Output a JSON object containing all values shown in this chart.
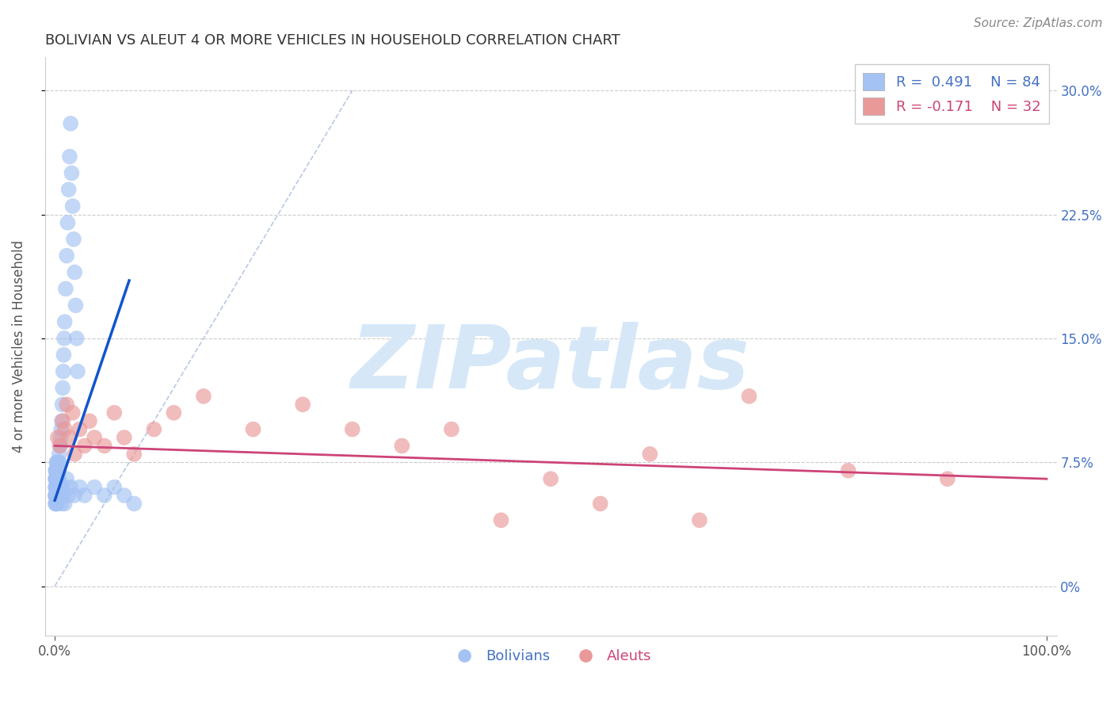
{
  "title": "BOLIVIAN VS ALEUT 4 OR MORE VEHICLES IN HOUSEHOLD CORRELATION CHART",
  "source_text": "Source: ZipAtlas.com",
  "xlabel": "",
  "ylabel": "4 or more Vehicles in Household",
  "xlim": [
    -1.0,
    101.0
  ],
  "ylim": [
    -3.0,
    32.0
  ],
  "xtick_vals": [
    0,
    100
  ],
  "xtick_labels": [
    "0.0%",
    "100.0%"
  ],
  "ytick_vals": [
    0,
    7.5,
    15.0,
    22.5,
    30.0
  ],
  "ytick_labels_right": [
    "0%",
    "7.5%",
    "15.0%",
    "22.5%",
    "30.0%"
  ],
  "blue_color": "#a4c2f4",
  "pink_color": "#ea9999",
  "blue_line_color": "#1155cc",
  "pink_line_color": "#cc4477",
  "grid_color": "#cccccc",
  "dash_color": "#aabbdd",
  "legend_blue_label": "R =  0.491    N = 84",
  "legend_pink_label": "R = -0.171    N = 32",
  "watermark": "ZIPatlas",
  "watermark_color": "#d6e8f8",
  "background_color": "#ffffff",
  "blue_scatter_x": [
    0.05,
    0.06,
    0.07,
    0.08,
    0.09,
    0.1,
    0.11,
    0.12,
    0.13,
    0.14,
    0.15,
    0.16,
    0.17,
    0.18,
    0.19,
    0.2,
    0.22,
    0.24,
    0.26,
    0.28,
    0.3,
    0.32,
    0.35,
    0.38,
    0.4,
    0.45,
    0.5,
    0.55,
    0.6,
    0.65,
    0.7,
    0.75,
    0.8,
    0.85,
    0.9,
    0.95,
    1.0,
    1.1,
    1.2,
    1.3,
    1.4,
    1.5,
    1.6,
    1.7,
    1.8,
    1.9,
    2.0,
    2.1,
    2.2,
    2.3,
    0.08,
    0.09,
    0.1,
    0.11,
    0.12,
    0.13,
    0.14,
    0.15,
    0.16,
    0.17,
    0.18,
    0.19,
    0.2,
    0.25,
    0.3,
    0.35,
    0.4,
    0.5,
    0.6,
    0.7,
    0.8,
    0.9,
    1.0,
    1.2,
    1.4,
    1.6,
    2.0,
    2.5,
    3.0,
    4.0,
    5.0,
    6.0,
    7.0,
    8.0
  ],
  "blue_scatter_y": [
    5.5,
    6.0,
    5.0,
    6.5,
    5.5,
    7.0,
    6.0,
    5.5,
    6.5,
    5.0,
    7.0,
    5.5,
    6.0,
    6.5,
    5.0,
    7.5,
    6.0,
    6.5,
    5.5,
    6.0,
    7.0,
    6.5,
    7.5,
    6.0,
    7.0,
    8.0,
    7.5,
    8.5,
    9.0,
    9.5,
    10.0,
    11.0,
    12.0,
    13.0,
    14.0,
    15.0,
    16.0,
    18.0,
    20.0,
    22.0,
    24.0,
    26.0,
    28.0,
    25.0,
    23.0,
    21.0,
    19.0,
    17.0,
    15.0,
    13.0,
    6.5,
    5.5,
    7.0,
    5.0,
    6.5,
    5.5,
    7.0,
    6.0,
    5.5,
    6.5,
    5.0,
    7.5,
    6.0,
    6.5,
    5.5,
    7.0,
    6.5,
    5.5,
    6.0,
    5.0,
    5.5,
    6.0,
    5.0,
    6.5,
    5.5,
    6.0,
    5.5,
    6.0,
    5.5,
    6.0,
    5.5,
    6.0,
    5.5,
    5.0
  ],
  "pink_scatter_x": [
    0.3,
    0.5,
    0.8,
    1.0,
    1.2,
    1.5,
    1.8,
    2.0,
    2.5,
    3.0,
    3.5,
    4.0,
    5.0,
    6.0,
    7.0,
    8.0,
    10.0,
    12.0,
    15.0,
    20.0,
    25.0,
    30.0,
    35.0,
    40.0,
    45.0,
    50.0,
    55.0,
    60.0,
    65.0,
    70.0,
    80.0,
    90.0
  ],
  "pink_scatter_y": [
    9.0,
    8.5,
    10.0,
    9.5,
    11.0,
    9.0,
    10.5,
    8.0,
    9.5,
    8.5,
    10.0,
    9.0,
    8.5,
    10.5,
    9.0,
    8.0,
    9.5,
    10.5,
    11.5,
    9.5,
    11.0,
    9.5,
    8.5,
    9.5,
    4.0,
    6.5,
    5.0,
    8.0,
    4.0,
    11.5,
    7.0,
    6.5
  ],
  "blue_trend_x": [
    0.0,
    7.5
  ],
  "blue_trend_y": [
    5.2,
    18.5
  ],
  "pink_trend_x": [
    0.0,
    100.0
  ],
  "pink_trend_y": [
    8.5,
    6.5
  ],
  "dash_line_x": [
    0,
    30
  ],
  "dash_line_y": [
    0,
    30
  ],
  "title_fontsize": 13,
  "tick_fontsize": 12,
  "label_fontsize": 12,
  "source_fontsize": 11
}
